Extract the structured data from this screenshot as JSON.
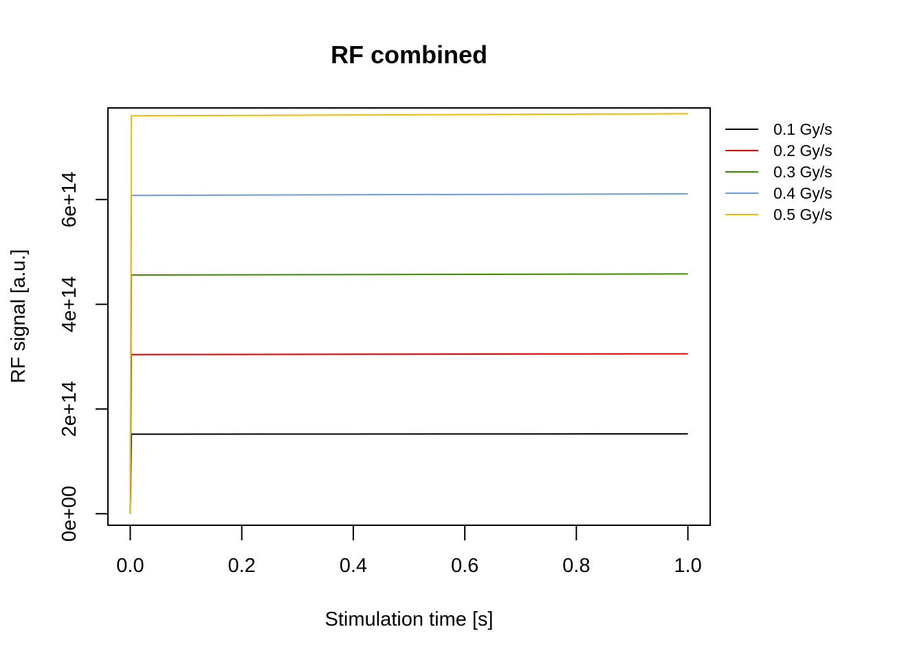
{
  "chart_data": {
    "type": "line",
    "title": "RF combined",
    "xlabel": "Stimulation time [s]",
    "ylabel": "RF signal [a.u.]",
    "xlim": [
      -0.04,
      1.04
    ],
    "ylim": [
      -22000000000000.0,
      775000000000000.0
    ],
    "x_ticks": [
      {
        "value": 0.0,
        "label": "0.0"
      },
      {
        "value": 0.2,
        "label": "0.2"
      },
      {
        "value": 0.4,
        "label": "0.4"
      },
      {
        "value": 0.6,
        "label": "0.6"
      },
      {
        "value": 0.8,
        "label": "0.8"
      },
      {
        "value": 1.0,
        "label": "1.0"
      }
    ],
    "y_ticks": [
      {
        "value": 0,
        "label": "0e+00"
      },
      {
        "value": 200000000000000.0,
        "label": "2e+14"
      },
      {
        "value": 400000000000000.0,
        "label": "4e+14"
      },
      {
        "value": 600000000000000.0,
        "label": "6e+14"
      }
    ],
    "grid": false,
    "legend_position": "right",
    "series": [
      {
        "name": "0.1 Gy/s",
        "color": "#000000",
        "x": [
          0,
          0.002,
          1.0
        ],
        "values": [
          0,
          152000000000000.0,
          152500000000000.0
        ]
      },
      {
        "name": "0.2 Gy/s",
        "color": "#DF0000",
        "x": [
          0,
          0.002,
          1.0
        ],
        "values": [
          0,
          304000000000000.0,
          305500000000000.0
        ]
      },
      {
        "name": "0.3 Gy/s",
        "color": "#3C8A00",
        "x": [
          0,
          0.002,
          1.0
        ],
        "values": [
          0,
          456000000000000.0,
          458000000000000.0
        ]
      },
      {
        "name": "0.4 Gy/s",
        "color": "#6C9BDF",
        "x": [
          0,
          0.002,
          1.0
        ],
        "values": [
          0,
          608000000000000.0,
          611000000000000.0
        ]
      },
      {
        "name": "0.5 Gy/s",
        "color": "#F5B800",
        "x": [
          0,
          0.002,
          1.0
        ],
        "values": [
          0,
          760000000000000.0,
          764000000000000.0
        ]
      }
    ]
  }
}
